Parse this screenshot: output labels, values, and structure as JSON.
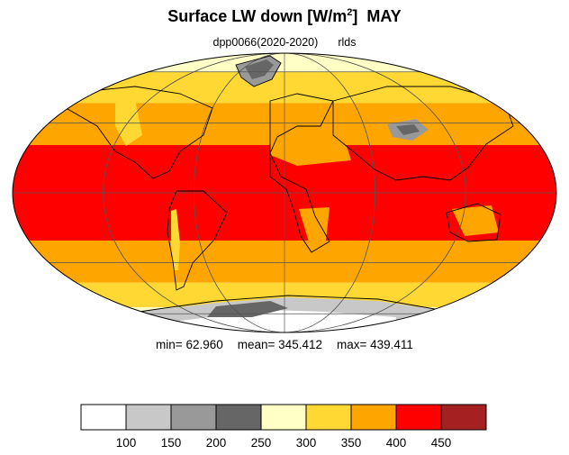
{
  "title": {
    "main": "Surface LW down [W/m",
    "superscript": "2",
    "close": "]",
    "month": "MAY"
  },
  "subtitle": {
    "experiment": "dpp0066(2020-2020)",
    "variable": "rlds"
  },
  "stats": {
    "min_label": "min=",
    "min_value": "62.960",
    "mean_label": "mean=",
    "mean_value": "345.412",
    "max_label": "max=",
    "max_value": "439.411"
  },
  "colorbar": {
    "labels": [
      "100",
      "150",
      "200",
      "250",
      "300",
      "350",
      "400",
      "450"
    ],
    "colors": [
      "#ffffff",
      "#c8c8c8",
      "#999999",
      "#666666",
      "#ffffc6",
      "#ffd833",
      "#ffa500",
      "#ff0000",
      "#a52020"
    ]
  },
  "map": {
    "projection": "Mollweide",
    "ocean_land_bands": [
      {
        "lat_range": [
          60,
          90
        ],
        "color": "#ffffc6"
      },
      {
        "lat_range": [
          40,
          60
        ],
        "color": "#ffd833"
      },
      {
        "lat_range": [
          20,
          40
        ],
        "color": "#ffa500"
      },
      {
        "lat_range": [
          -20,
          20
        ],
        "color": "#ff0000"
      },
      {
        "lat_range": [
          -40,
          -20
        ],
        "color": "#ffa500"
      },
      {
        "lat_range": [
          -55,
          -40
        ],
        "color": "#ffd833"
      },
      {
        "lat_range": [
          -70,
          -55
        ],
        "color": "#ffffc6"
      },
      {
        "lat_range": [
          -90,
          -70
        ],
        "color": "#999999"
      }
    ]
  }
}
